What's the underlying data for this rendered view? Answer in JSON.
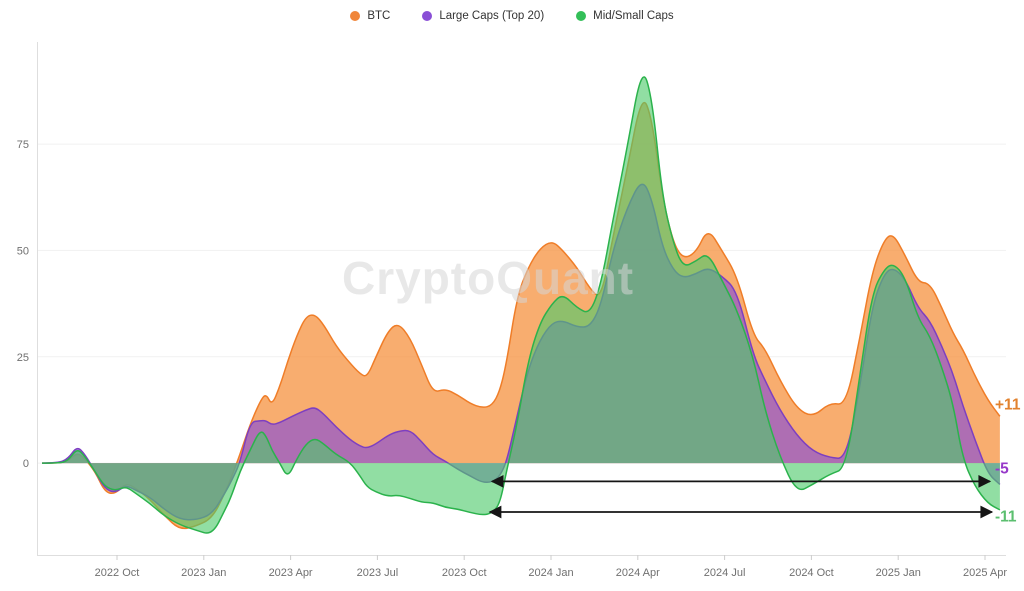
{
  "watermark": "CryptoQuant",
  "legend": [
    {
      "label": "BTC",
      "color": "#f0863a"
    },
    {
      "label": "Large Caps (Top 20)",
      "color": "#8a4fd6"
    },
    {
      "label": "Mid/Small Caps",
      "color": "#33bf58"
    }
  ],
  "chart_data": {
    "type": "area",
    "title": "",
    "xlabel": "",
    "ylabel": "",
    "x_unit": "decimal_year",
    "grid": true,
    "legend_position": "top-center",
    "ylim": [
      -21.6,
      98.3
    ],
    "y_ticks": [
      0,
      25,
      50,
      75
    ],
    "x_ticks": [
      {
        "t": 2022.75,
        "label": "2022 Oct"
      },
      {
        "t": 2023.0,
        "label": "2023 Jan"
      },
      {
        "t": 2023.25,
        "label": "2023 Apr"
      },
      {
        "t": 2023.5,
        "label": "2023 Jul"
      },
      {
        "t": 2023.75,
        "label": "2023 Oct"
      },
      {
        "t": 2024.0,
        "label": "2024 Jan"
      },
      {
        "t": 2024.25,
        "label": "2024 Apr"
      },
      {
        "t": 2024.5,
        "label": "2024 Jul"
      },
      {
        "t": 2024.75,
        "label": "2024 Oct"
      },
      {
        "t": 2025.0,
        "label": "2025 Jan"
      },
      {
        "t": 2025.25,
        "label": "2025 Apr"
      }
    ],
    "t": [
      2022.534,
      2022.58,
      2022.609,
      2022.635,
      2022.658,
      2022.687,
      2022.715,
      2022.744,
      2022.776,
      2022.802,
      2022.845,
      2022.888,
      2022.931,
      2022.978,
      2023.024,
      2023.061,
      2023.081,
      2023.104,
      2023.133,
      2023.162,
      2023.179,
      2023.196,
      2023.219,
      2023.242,
      2023.268,
      2023.294,
      2023.32,
      2023.346,
      2023.381,
      2023.421,
      2023.45,
      2023.47,
      2023.496,
      2023.53,
      2023.559,
      2023.594,
      2023.628,
      2023.66,
      2023.695,
      2023.732,
      2023.767,
      2023.801,
      2023.83,
      2023.853,
      2023.873,
      2023.902,
      2023.934,
      2023.968,
      2024.003,
      2024.034,
      2024.075,
      2024.112,
      2024.144,
      2024.178,
      2024.219,
      2024.262,
      2024.291,
      2024.32,
      2024.351,
      2024.38,
      2024.418,
      2024.452,
      2024.492,
      2024.536,
      2024.582,
      2024.616,
      2024.659,
      2024.708,
      2024.754,
      2024.803,
      2024.85,
      2024.89,
      2024.925,
      2024.959,
      2024.985,
      2025.019,
      2025.057,
      2025.091,
      2025.126,
      2025.158,
      2025.186,
      2025.221,
      2025.258,
      2025.293
    ],
    "series": [
      {
        "name": "BTC",
        "line_color": "#ef7d28",
        "fill_color": "#f6923f",
        "fill_opacity": 0.75,
        "end_value": 11,
        "values": [
          0,
          0,
          0.5,
          2.5,
          1,
          -2,
          -6.8,
          -7.3,
          -4.7,
          -5.8,
          -8.5,
          -12.5,
          -15.7,
          -14.8,
          -13,
          -7,
          -3,
          2,
          9,
          14.5,
          16.4,
          13.5,
          18,
          24,
          30,
          34.5,
          35,
          32.5,
          27.5,
          23.5,
          21,
          20.2,
          25,
          31,
          33,
          29.5,
          23,
          16.5,
          17.5,
          16,
          14,
          13,
          13.5,
          17,
          24,
          39,
          46,
          50.5,
          52.3,
          50,
          46,
          41,
          38.5,
          53,
          69,
          87,
          81,
          63,
          52,
          48,
          49.5,
          55.3,
          50,
          44,
          30,
          27,
          19.5,
          12.8,
          10.8,
          14.2,
          13.6,
          29.6,
          45,
          52.5,
          54,
          49,
          42.5,
          42.3,
          36.5,
          30.5,
          26.8,
          20.5,
          14.8,
          11
        ]
      },
      {
        "name": "Large Caps (Top 20)",
        "line_color": "#7d3fc1",
        "fill_color": "#8e52d0",
        "fill_opacity": 0.7,
        "end_value": -5,
        "values": [
          0,
          0,
          1,
          4,
          2,
          -2,
          -6,
          -7,
          -5.2,
          -6.3,
          -8,
          -11,
          -13.2,
          -13.4,
          -12,
          -7,
          -4,
          0,
          9.6,
          10,
          10,
          9,
          9.5,
          10.5,
          11.5,
          12.5,
          13.2,
          11.5,
          8.5,
          5.5,
          4,
          3.5,
          4.5,
          6.5,
          7.5,
          7.8,
          5,
          2,
          0.5,
          -1.5,
          -3,
          -4.5,
          -4.5,
          -3,
          0.5,
          11,
          22,
          29,
          33,
          33.5,
          32,
          32,
          37,
          50,
          60,
          67,
          62,
          51,
          45.5,
          43.5,
          44.5,
          46,
          44,
          40.5,
          25.5,
          19.5,
          12.5,
          6.5,
          2.8,
          1.3,
          1,
          18,
          37,
          44.5,
          46,
          43.5,
          36.5,
          33.5,
          27.5,
          21,
          13.5,
          5.5,
          -2.5,
          -5
        ]
      },
      {
        "name": "Mid/Small Caps",
        "line_color": "#2bb24c",
        "fill_color": "#4ec96a",
        "fill_opacity": 0.62,
        "end_value": -11,
        "values": [
          0,
          0,
          0.5,
          3.5,
          1.5,
          -2,
          -5.5,
          -6.5,
          -5.5,
          -7,
          -9.5,
          -12.5,
          -14.5,
          -15.8,
          -16.9,
          -11,
          -7.5,
          -2,
          3,
          7.8,
          6.5,
          3,
          0,
          -3.5,
          1,
          4.5,
          5.9,
          4.5,
          2,
          0.2,
          -3,
          -5.6,
          -6.8,
          -7.8,
          -7.5,
          -8.3,
          -9.2,
          -9.3,
          -10.4,
          -10.8,
          -11.6,
          -12.2,
          -11.8,
          -9.5,
          -1.5,
          9,
          24,
          33,
          37.5,
          39.8,
          36.5,
          35,
          42,
          57,
          74,
          93.5,
          86,
          63,
          52,
          46,
          47.5,
          49.5,
          43,
          36,
          25,
          12.5,
          1.5,
          -7,
          -5,
          -2.6,
          -1.2,
          21,
          40,
          45.5,
          47,
          44,
          34,
          30,
          22.5,
          14,
          1,
          -5.5,
          -9.5,
          -11
        ]
      }
    ],
    "annotations": {
      "end_labels": [
        {
          "text": "+11",
          "color": "#e2822e",
          "v": 13.8
        },
        {
          "text": "-5",
          "color": "#9739c9",
          "v": -1.3
        },
        {
          "text": "-11",
          "color": "#5bbf6f",
          "v": -12.6
        }
      ],
      "arrows": [
        {
          "from_t": 2023.83,
          "to_t": 2025.264,
          "v": -4.3
        },
        {
          "from_t": 2023.824,
          "to_t": 2025.27,
          "v": -11.5
        }
      ]
    }
  }
}
